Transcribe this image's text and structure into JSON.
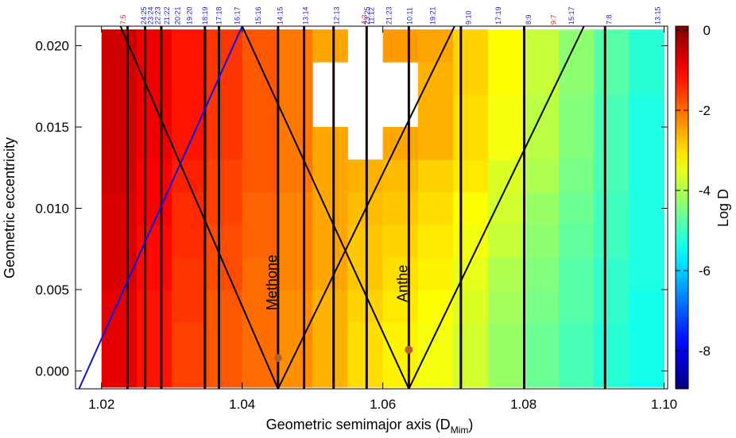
{
  "chart_data": {
    "type": "heatmap",
    "xlabel": "Geometric semimajor axis (D",
    "xlabel_sub": "Mim",
    "xlabel_end": ")",
    "ylabel": "Geometric eccentricity",
    "colorbar_label": "Log D",
    "colormap": "jet",
    "xlim": [
      1.0163,
      1.1005
    ],
    "ylim": [
      -0.0011,
      0.0212
    ],
    "xticks": [
      1.02,
      1.04,
      1.06,
      1.08,
      {
        "value": 1.1,
        "label": "1.10"
      }
    ],
    "yticks": [
      {
        "value": 0,
        "label": "0.000"
      },
      {
        "value": 0.005,
        "label": "0.005"
      },
      {
        "value": 0.01,
        "label": "0.010"
      },
      {
        "value": 0.015,
        "label": "0.015"
      },
      {
        "value": 0.02,
        "label": "0.020"
      }
    ],
    "clim": [
      -8.95,
      0.1
    ],
    "cticks": [
      0,
      -2,
      -4,
      -6,
      -8
    ],
    "x_edges": [
      1.02,
      1.025,
      1.03,
      1.035,
      1.04,
      1.045,
      1.05,
      1.055,
      1.06,
      1.065,
      1.07,
      1.075,
      1.08,
      1.085,
      1.09,
      1.095,
      1.1
    ],
    "y_edges": [
      -0.001,
      0.001,
      0.003,
      0.005,
      0.007,
      0.009,
      0.011,
      0.013,
      0.015,
      0.017,
      0.019,
      0.021
    ],
    "z": [
      [
        -0.8,
        -1.2,
        -1.6,
        -1.8,
        -2.0,
        -2.3,
        -2.6,
        -3.0,
        -3.2,
        -3.4,
        -3.7,
        -4.2,
        -4.6,
        -4.9,
        -5.2,
        -5.4
      ],
      [
        -0.8,
        -1.2,
        -1.6,
        -1.8,
        -2.0,
        -2.3,
        -2.6,
        -3.0,
        -3.2,
        -3.4,
        -3.7,
        -4.2,
        -4.6,
        -4.9,
        -5.2,
        -5.4
      ],
      [
        -0.8,
        -1.2,
        -1.5,
        -1.8,
        -2.0,
        -2.3,
        -2.6,
        -2.9,
        -3.1,
        -3.3,
        -3.6,
        -4.1,
        -4.5,
        -4.8,
        -5.1,
        -5.4
      ],
      [
        -0.7,
        -1.1,
        -1.5,
        -1.7,
        -2.0,
        -2.2,
        -2.5,
        -2.8,
        -3.0,
        -3.2,
        -3.5,
        -4.0,
        -4.4,
        -4.8,
        -5.1,
        -5.3
      ],
      [
        -0.7,
        -1.1,
        -1.4,
        -1.7,
        -1.9,
        -2.2,
        -2.5,
        -2.8,
        -2.9,
        -3.1,
        -3.4,
        -3.8,
        -4.3,
        -4.7,
        -5.0,
        -5.3
      ],
      [
        -0.7,
        -1.0,
        -1.4,
        -1.6,
        -1.9,
        -2.2,
        -2.5,
        -2.7,
        -2.8,
        -3.0,
        -3.3,
        -3.7,
        -4.2,
        -4.6,
        -5.0,
        -5.3
      ],
      [
        -0.6,
        -1.0,
        -1.3,
        -1.6,
        -1.8,
        -2.1,
        -2.5,
        -2.6,
        -2.7,
        -2.9,
        -3.1,
        -3.6,
        -4.0,
        -4.5,
        -4.9,
        -5.3
      ],
      [
        -0.6,
        -0.9,
        -1.2,
        -1.5,
        -1.8,
        -2.1,
        -2.5,
        null,
        -2.5,
        -2.6,
        -3.0,
        -3.4,
        -3.9,
        -4.4,
        -4.9,
        -5.3
      ],
      [
        -0.6,
        -0.9,
        -1.2,
        -1.5,
        -1.8,
        -2.1,
        null,
        null,
        null,
        -2.6,
        -3.0,
        -3.4,
        -3.9,
        -4.4,
        -4.9,
        -5.3
      ],
      [
        -0.6,
        -0.9,
        -1.2,
        -1.5,
        -1.8,
        -2.1,
        null,
        null,
        null,
        -2.6,
        -2.9,
        -3.3,
        -3.8,
        -4.3,
        -4.8,
        -5.2
      ],
      [
        -0.6,
        -0.9,
        -1.2,
        -1.5,
        -1.8,
        -2.1,
        -2.5,
        null,
        -2.4,
        -2.5,
        -2.9,
        -3.3,
        -3.8,
        -4.3,
        -4.8,
        -5.2
      ]
    ],
    "stripe_color": "#1a0804",
    "stripes": [
      1.0237,
      1.0262,
      1.0285,
      1.0347,
      1.0367,
      1.0451,
      1.0488,
      1.053,
      1.0577,
      1.0637,
      1.0711,
      1.0801,
      1.0916
    ],
    "resonances": [
      {
        "label": "7:5",
        "x": 1.0231,
        "color": "#e02020"
      },
      {
        "label": "24:25",
        "x": 1.026,
        "color": "#2020c0"
      },
      {
        "label": "23:24",
        "x": 1.027,
        "color": "#2020c0"
      },
      {
        "label": "22:23",
        "x": 1.028,
        "color": "#2020c0"
      },
      {
        "label": "21:22",
        "x": 1.0293,
        "color": "#2020c0"
      },
      {
        "label": "20:21",
        "x": 1.0308,
        "color": "#2020c0"
      },
      {
        "label": "19:20",
        "x": 1.0325,
        "color": "#2020c0"
      },
      {
        "label": "18:19",
        "x": 1.0347,
        "color": "#2020c0"
      },
      {
        "label": "17:18",
        "x": 1.0367,
        "color": "#2020c0"
      },
      {
        "label": "16:17",
        "x": 1.0393,
        "color": "#2020c0"
      },
      {
        "label": "15:16",
        "x": 1.0423,
        "color": "#2020c0"
      },
      {
        "label": "14:15",
        "x": 1.0454,
        "color": "#2020c0"
      },
      {
        "label": "13:14",
        "x": 1.049,
        "color": "#2020c0"
      },
      {
        "label": "12:13",
        "x": 1.0534,
        "color": "#2020c0"
      },
      {
        "label": "4:3",
        "x": 1.0574,
        "color": "#e02020"
      },
      {
        "label": "23:25",
        "x": 1.0578,
        "color": "#2020c0"
      },
      {
        "label": "11:12",
        "x": 1.0584,
        "color": "#2020c0"
      },
      {
        "label": "21:23",
        "x": 1.0609,
        "color": "#2020c0"
      },
      {
        "label": "10:11",
        "x": 1.0638,
        "color": "#2020c0"
      },
      {
        "label": "19:21",
        "x": 1.0671,
        "color": "#2020c0"
      },
      {
        "label": "9:10",
        "x": 1.0722,
        "color": "#2020c0"
      },
      {
        "label": "17:19",
        "x": 1.0764,
        "color": "#2020c0"
      },
      {
        "label": "8:9",
        "x": 1.0807,
        "color": "#2020c0"
      },
      {
        "label": "9:7",
        "x": 1.0843,
        "color": "#e02020"
      },
      {
        "label": "15:17",
        "x": 1.0868,
        "color": "#2020c0"
      },
      {
        "label": "7:8",
        "x": 1.0922,
        "color": "#2020c0"
      },
      {
        "label": "13:15",
        "x": 1.0991,
        "color": "#2020c0"
      }
    ],
    "curves": [
      {
        "color": "#000000",
        "x": [
          1.0227,
          1.0451,
          1.0702
        ],
        "y": [
          0.0212,
          -0.0011,
          0.0212
        ]
      },
      {
        "color": "#000000",
        "x": [
          1.04,
          1.0637,
          1.0886
        ],
        "y": [
          0.0212,
          -0.0011,
          0.0212
        ]
      },
      {
        "color": "#1010e0",
        "x": [
          1.0168,
          1.04
        ],
        "y": [
          -0.0011,
          0.0212
        ]
      }
    ],
    "moon_color": "#b5602a",
    "moons": [
      {
        "name": "Methone",
        "x": 1.0451,
        "y": 0.0008
      },
      {
        "name": "Anthe",
        "x": 1.0637,
        "y": 0.0013
      }
    ]
  }
}
